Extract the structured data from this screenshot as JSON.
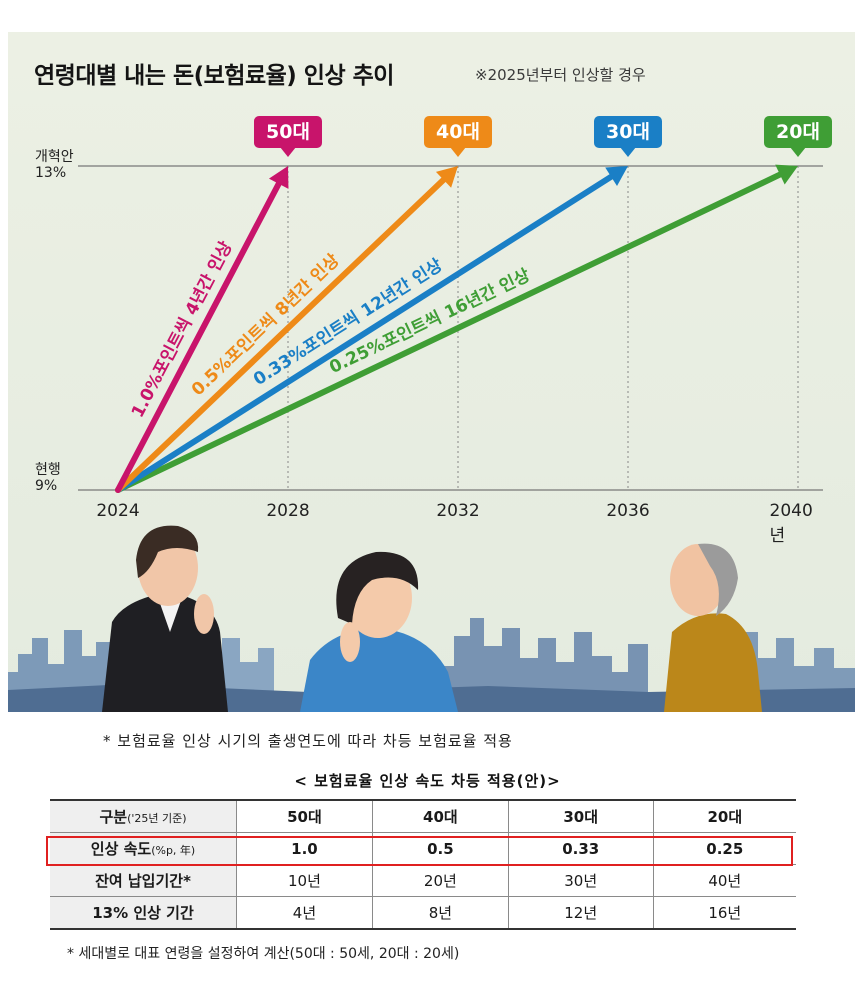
{
  "title": "연령대별 내는 돈(보험료율) 인상 추이",
  "subtitle": "※2025년부터 인상할 경우",
  "chart_data": {
    "type": "line",
    "title": "연령대별 내는 돈(보험료율) 인상 추이",
    "note": "※2025년부터 인상할 경우",
    "y_labels": [
      {
        "line1": "개혁안",
        "line2": "13%",
        "value": 13
      },
      {
        "line1": "현행",
        "line2": "9%",
        "value": 9
      }
    ],
    "x_ticks": [
      "2024",
      "2028",
      "2032",
      "2036",
      "2040년"
    ],
    "x_range": [
      2024,
      2040
    ],
    "y_range": [
      9,
      13
    ],
    "series": [
      {
        "name": "50대",
        "start": [
          2024,
          9
        ],
        "end": [
          2028,
          13
        ],
        "label": "1.0%포인트씩 4년간 인상",
        "color": "#c8146b"
      },
      {
        "name": "40대",
        "start": [
          2024,
          9
        ],
        "end": [
          2032,
          13
        ],
        "label": "0.5%포인트씩 8년간 인상",
        "color": "#ee8a18"
      },
      {
        "name": "30대",
        "start": [
          2024,
          9
        ],
        "end": [
          2036,
          13
        ],
        "label": "0.33%포인트씩 12년간 인상",
        "color": "#1a7fc6"
      },
      {
        "name": "20대",
        "start": [
          2024,
          9
        ],
        "end": [
          2040,
          13
        ],
        "label": "0.25%포인트씩 16년간 인상",
        "color": "#3f9e35"
      }
    ]
  },
  "note1": "* 보험료율 인상 시기의 출생연도에 따라 차등 보험료율 적용",
  "table": {
    "title": "< 보험료율 인상 속도 차등 적용(안)>",
    "header": {
      "label": "구분",
      "sub": "('25년 기준)",
      "cols": [
        "50대",
        "40대",
        "30대",
        "20대"
      ]
    },
    "rows": [
      {
        "label": "인상 속도",
        "sub": "(%p, 年)",
        "values": [
          "1.0",
          "0.5",
          "0.33",
          "0.25"
        ]
      },
      {
        "label": "잔여 납입기간*",
        "sub": "",
        "values": [
          "10년",
          "20년",
          "30년",
          "40년"
        ]
      },
      {
        "label": "13% 인상 기간",
        "sub": "",
        "values": [
          "4년",
          "8년",
          "12년",
          "16년"
        ]
      }
    ]
  },
  "note2": "* 세대별로 대표 연령을 설정하여 계산(50대 : 50세, 20대 : 20세)"
}
